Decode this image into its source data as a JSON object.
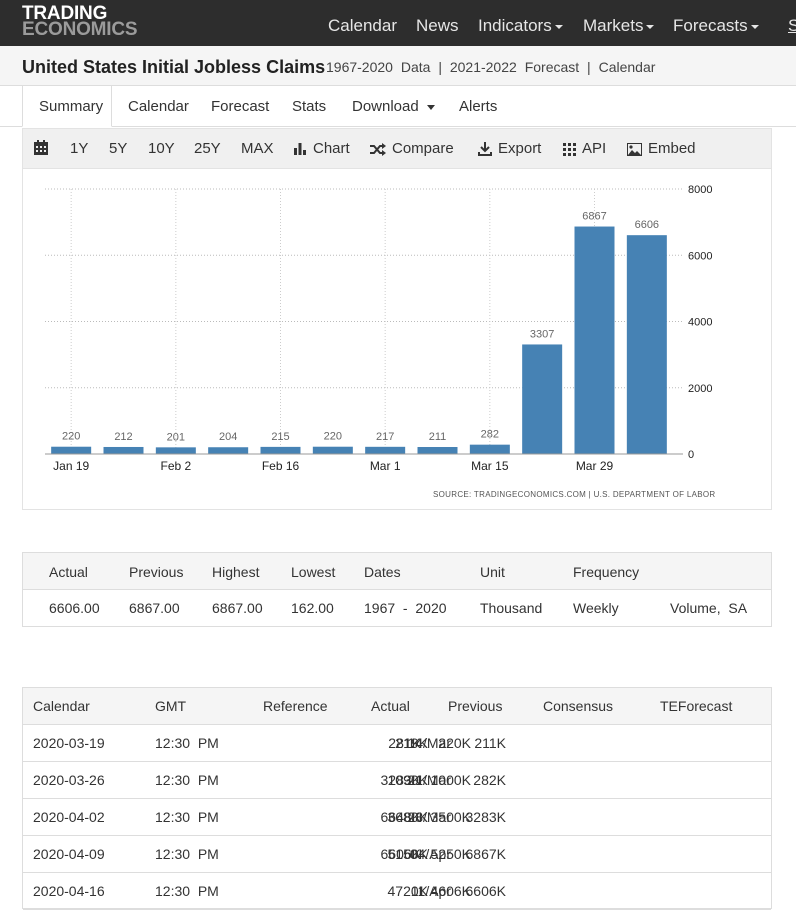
{
  "brand": {
    "line1": "TRADING",
    "line2": "ECONOMICS"
  },
  "nav": {
    "items": [
      {
        "label": "Calendar",
        "dropdown": false
      },
      {
        "label": "News",
        "dropdown": false
      },
      {
        "label": "Indicators",
        "dropdown": true
      },
      {
        "label": "Markets",
        "dropdown": true
      },
      {
        "label": "Forecasts",
        "dropdown": true
      }
    ],
    "overflow_label": "S"
  },
  "title": {
    "main": "United States Initial Jobless Claims",
    "range1": "1967-2020",
    "data_link": "Data",
    "range2": "2021-2022",
    "forecast_link": "Forecast",
    "calendar_link": "Calendar",
    "sep": "|"
  },
  "tabs": [
    "Summary",
    "Calendar",
    "Forecast",
    "Stats",
    "Download",
    "Alerts"
  ],
  "toolbar": {
    "ranges": [
      "1Y",
      "5Y",
      "10Y",
      "25Y",
      "MAX"
    ],
    "chart": "Chart",
    "compare": "Compare",
    "export": "Export",
    "api": "API",
    "embed": "Embed"
  },
  "chart_data": {
    "type": "bar",
    "values": [
      220,
      212,
      201,
      204,
      215,
      220,
      217,
      211,
      282,
      3307,
      6867,
      6606
    ],
    "x_tick_labels": [
      "Jan 19",
      "Feb 2",
      "Feb 16",
      "Mar 1",
      "Mar 15",
      "Mar 29"
    ],
    "yticks": [
      0,
      2000,
      4000,
      6000,
      8000
    ],
    "ylim": [
      0,
      8000
    ],
    "grid": true,
    "bar_color": "#4682b4",
    "source": "SOURCE: TRADINGECONOMICS.COM | U.S. DEPARTMENT OF LABOR"
  },
  "summary": {
    "headers": [
      "Actual",
      "Previous",
      "Highest",
      "Lowest",
      "Dates",
      "Unit",
      "Frequency",
      ""
    ],
    "values": [
      "6606.00",
      "6867.00",
      "6867.00",
      "162.00",
      "1967  -  2020",
      "Thousand",
      "Weekly",
      "Volume,  SA"
    ]
  },
  "calendar": {
    "headers": [
      "Calendar",
      "GMT",
      "Reference",
      "Actual",
      "Previous",
      "Consensus",
      "TEForecast"
    ],
    "rows": [
      [
        "2020-03-19",
        "12:30  PM",
        "14/Mar",
        "281K",
        "211K",
        "220K",
        "219K"
      ],
      [
        "2020-03-26",
        "12:30  PM",
        "21/Mar",
        "3283K",
        "282K",
        "1000K",
        "1090K"
      ],
      [
        "2020-04-02",
        "12:30  PM",
        "28/Mar",
        "6648K",
        "3283K",
        "3500K",
        "3680K"
      ],
      [
        "2020-04-09",
        "12:30  PM",
        "04/Apr",
        "6606K",
        "6867K",
        "5250K",
        "5150K"
      ],
      [
        "2020-04-16",
        "12:30  PM",
        "11/Apr",
        "",
        "6606K",
        "4606K",
        "4720K"
      ]
    ]
  }
}
